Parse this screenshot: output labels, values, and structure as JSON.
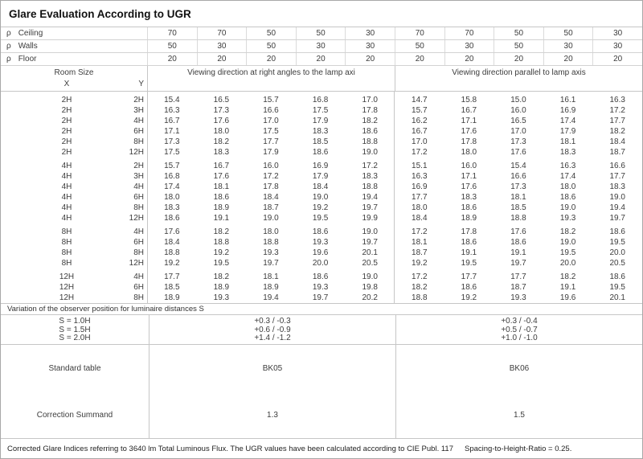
{
  "title": "Glare Evaluation According to UGR",
  "header": {
    "rho_rows": [
      {
        "symbol": "ρ",
        "label": "Ceiling",
        "values": [
          "70",
          "70",
          "50",
          "50",
          "30",
          "70",
          "70",
          "50",
          "50",
          "30"
        ]
      },
      {
        "symbol": "ρ",
        "label": "Walls",
        "values": [
          "50",
          "30",
          "50",
          "30",
          "30",
          "50",
          "30",
          "50",
          "30",
          "30"
        ]
      },
      {
        "symbol": "ρ",
        "label": "Floor",
        "values": [
          "20",
          "20",
          "20",
          "20",
          "20",
          "20",
          "20",
          "20",
          "20",
          "20"
        ]
      }
    ],
    "room_size_label": "Room Size",
    "x_label": "X",
    "y_label": "Y",
    "group_left": "Viewing direction at right angles to the lamp axi",
    "group_right": "Viewing direction parallel to lamp axis"
  },
  "table": {
    "blocks": [
      {
        "rows": [
          {
            "x": "2H",
            "y": "2H",
            "v": [
              "15.4",
              "16.5",
              "15.7",
              "16.8",
              "17.0",
              "14.7",
              "15.8",
              "15.0",
              "16.1",
              "16.3"
            ]
          },
          {
            "x": "2H",
            "y": "3H",
            "v": [
              "16.3",
              "17.3",
              "16.6",
              "17.5",
              "17.8",
              "15.7",
              "16.7",
              "16.0",
              "16.9",
              "17.2"
            ]
          },
          {
            "x": "2H",
            "y": "4H",
            "v": [
              "16.7",
              "17.6",
              "17.0",
              "17.9",
              "18.2",
              "16.2",
              "17.1",
              "16.5",
              "17.4",
              "17.7"
            ]
          },
          {
            "x": "2H",
            "y": "6H",
            "v": [
              "17.1",
              "18.0",
              "17.5",
              "18.3",
              "18.6",
              "16.7",
              "17.6",
              "17.0",
              "17.9",
              "18.2"
            ]
          },
          {
            "x": "2H",
            "y": "8H",
            "v": [
              "17.3",
              "18.2",
              "17.7",
              "18.5",
              "18.8",
              "17.0",
              "17.8",
              "17.3",
              "18.1",
              "18.4"
            ]
          },
          {
            "x": "2H",
            "y": "12H",
            "v": [
              "17.5",
              "18.3",
              "17.9",
              "18.6",
              "19.0",
              "17.2",
              "18.0",
              "17.6",
              "18.3",
              "18.7"
            ]
          }
        ]
      },
      {
        "rows": [
          {
            "x": "4H",
            "y": "2H",
            "v": [
              "15.7",
              "16.7",
              "16.0",
              "16.9",
              "17.2",
              "15.1",
              "16.0",
              "15.4",
              "16.3",
              "16.6"
            ]
          },
          {
            "x": "4H",
            "y": "3H",
            "v": [
              "16.8",
              "17.6",
              "17.2",
              "17.9",
              "18.3",
              "16.3",
              "17.1",
              "16.6",
              "17.4",
              "17.7"
            ]
          },
          {
            "x": "4H",
            "y": "4H",
            "v": [
              "17.4",
              "18.1",
              "17.8",
              "18.4",
              "18.8",
              "16.9",
              "17.6",
              "17.3",
              "18.0",
              "18.3"
            ]
          },
          {
            "x": "4H",
            "y": "6H",
            "v": [
              "18.0",
              "18.6",
              "18.4",
              "19.0",
              "19.4",
              "17.7",
              "18.3",
              "18.1",
              "18.6",
              "19.0"
            ]
          },
          {
            "x": "4H",
            "y": "8H",
            "v": [
              "18.3",
              "18.9",
              "18.7",
              "19.2",
              "19.7",
              "18.0",
              "18.6",
              "18.5",
              "19.0",
              "19.4"
            ]
          },
          {
            "x": "4H",
            "y": "12H",
            "v": [
              "18.6",
              "19.1",
              "19.0",
              "19.5",
              "19.9",
              "18.4",
              "18.9",
              "18.8",
              "19.3",
              "19.7"
            ]
          }
        ]
      },
      {
        "rows": [
          {
            "x": "8H",
            "y": "4H",
            "v": [
              "17.6",
              "18.2",
              "18.0",
              "18.6",
              "19.0",
              "17.2",
              "17.8",
              "17.6",
              "18.2",
              "18.6"
            ]
          },
          {
            "x": "8H",
            "y": "6H",
            "v": [
              "18.4",
              "18.8",
              "18.8",
              "19.3",
              "19.7",
              "18.1",
              "18.6",
              "18.6",
              "19.0",
              "19.5"
            ]
          },
          {
            "x": "8H",
            "y": "8H",
            "v": [
              "18.8",
              "19.2",
              "19.3",
              "19.6",
              "20.1",
              "18.7",
              "19.1",
              "19.1",
              "19.5",
              "20.0"
            ]
          },
          {
            "x": "8H",
            "y": "12H",
            "v": [
              "19.2",
              "19.5",
              "19.7",
              "20.0",
              "20.5",
              "19.2",
              "19.5",
              "19.7",
              "20.0",
              "20.5"
            ]
          }
        ]
      },
      {
        "rows": [
          {
            "x": "12H",
            "y": "4H",
            "v": [
              "17.7",
              "18.2",
              "18.1",
              "18.6",
              "19.0",
              "17.2",
              "17.7",
              "17.7",
              "18.2",
              "18.6"
            ]
          },
          {
            "x": "12H",
            "y": "6H",
            "v": [
              "18.5",
              "18.9",
              "18.9",
              "19.3",
              "19.8",
              "18.2",
              "18.6",
              "18.7",
              "19.1",
              "19.5"
            ]
          },
          {
            "x": "12H",
            "y": "8H",
            "v": [
              "18.9",
              "19.3",
              "19.4",
              "19.7",
              "20.2",
              "18.8",
              "19.2",
              "19.3",
              "19.6",
              "20.1"
            ]
          }
        ]
      }
    ]
  },
  "variation": {
    "label": "Variation of the observer position for luminaire distances S",
    "rows": [
      {
        "s": "S = 1.0H",
        "left": "+0.3 / -0.3",
        "right": "+0.3 / -0.4"
      },
      {
        "s": "S = 1.5H",
        "left": "+0.6 / -0.9",
        "right": "+0.5 / -0.7"
      },
      {
        "s": "S = 2.0H",
        "left": "+1.4 / -1.2",
        "right": "+1.0 / -1.0"
      }
    ]
  },
  "summary": {
    "standard_table_label": "Standard table",
    "standard_left": "BK05",
    "standard_right": "BK06",
    "correction_label": "Correction Summand",
    "correction_left": "1.3",
    "correction_right": "1.5"
  },
  "footer": {
    "text": "Corrected Glare Indices referring to 3640 lm Total Luminous Flux. The UGR values have been calculated according to CIE Publ. 117",
    "ratio": "Spacing-to-Height-Ratio = 0.25."
  }
}
